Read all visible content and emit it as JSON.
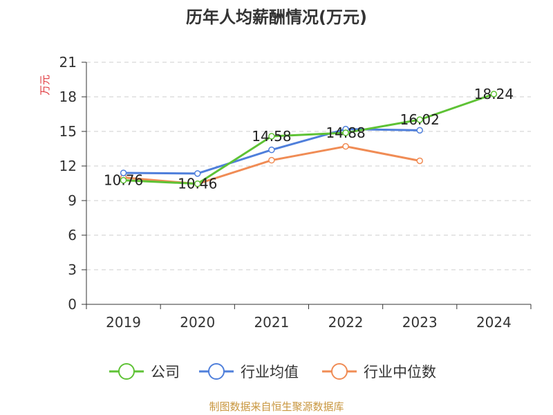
{
  "chart_data": {
    "type": "line",
    "title": "历年人均薪酬情况(万元)",
    "ylabel": "万元",
    "xlabel": "",
    "categories": [
      "2019",
      "2020",
      "2021",
      "2022",
      "2023",
      "2024"
    ],
    "ylim": [
      0,
      21
    ],
    "yticks": [
      0,
      3,
      6,
      9,
      12,
      15,
      18,
      21
    ],
    "grid": true,
    "legend_position": "bottom",
    "series": [
      {
        "name": "公司",
        "color": "#5ec235",
        "values": [
          10.76,
          10.46,
          14.58,
          14.88,
          16.02,
          18.24
        ],
        "labels": [
          "10.76",
          "10.46",
          "14.58",
          "14.88",
          "16.02",
          "18.24"
        ]
      },
      {
        "name": "行业均值",
        "color": "#4f7fdb",
        "values": [
          11.4,
          11.35,
          13.4,
          15.2,
          15.1,
          null
        ]
      },
      {
        "name": "行业中位数",
        "color": "#f08c55",
        "values": [
          11.0,
          10.45,
          12.5,
          13.7,
          12.45,
          null
        ]
      }
    ]
  },
  "source": "制图数据来自恒生聚源数据库"
}
